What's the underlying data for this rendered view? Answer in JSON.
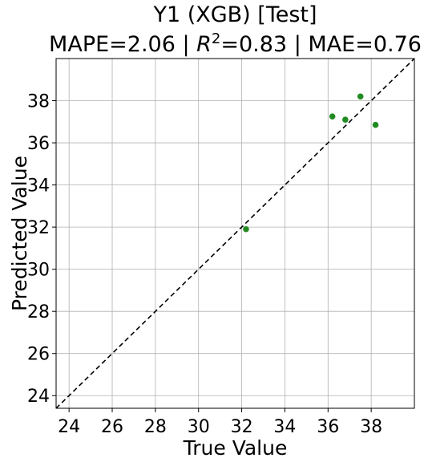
{
  "chart_data": {
    "type": "scatter",
    "title": "Y1 (XGB) [Test]",
    "subtitle_prefix": "MAPE=2.06 | ",
    "subtitle_r2_symbol": "R",
    "subtitle_r2_exponent": "2",
    "subtitle_suffix": "=0.83 | MAE=0.76",
    "xlabel": "True Value",
    "ylabel": "Predicted Value",
    "xlim": [
      23.4,
      40.0
    ],
    "ylim": [
      23.4,
      40.0
    ],
    "xticks": [
      24,
      26,
      28,
      30,
      32,
      34,
      36,
      38
    ],
    "yticks": [
      24,
      26,
      28,
      30,
      32,
      34,
      36,
      38
    ],
    "grid": true,
    "reference_line": {
      "style": "dashed",
      "color": "#000000",
      "from": [
        23.4,
        23.4
      ],
      "to": [
        40.0,
        40.0
      ]
    },
    "points": [
      {
        "x": 32.2,
        "y": 31.9
      },
      {
        "x": 36.2,
        "y": 37.25
      },
      {
        "x": 36.8,
        "y": 37.1
      },
      {
        "x": 37.5,
        "y": 38.2
      },
      {
        "x": 38.2,
        "y": 36.85
      }
    ],
    "point_color": "#228b22"
  }
}
